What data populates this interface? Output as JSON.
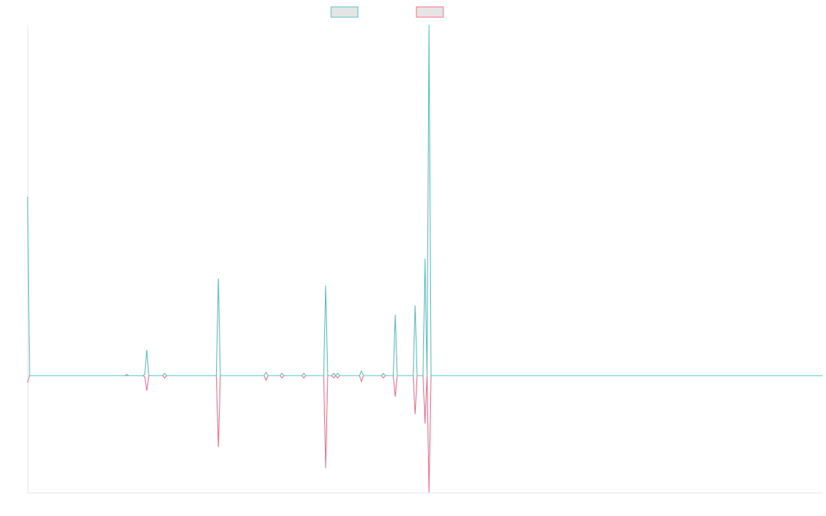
{
  "colors": {
    "series_1": "#4bc0c0",
    "series_2": "#ff6384",
    "legend_fill": "#e5e5e5",
    "axis": "#e6e6e6",
    "background": "#ffffff"
  },
  "legend": {
    "placement": "top-center",
    "items": [
      {
        "label": "",
        "color": "#4bc0c0"
      },
      {
        "label": "",
        "color": "#ff6384"
      }
    ]
  },
  "chart_data": {
    "type": "line",
    "title": "",
    "xlabel": "",
    "ylabel": "",
    "grid": false,
    "ticks_visible": false,
    "x": [
      0,
      1,
      2,
      3,
      4,
      5,
      6,
      7,
      8,
      9,
      10,
      11,
      12,
      13,
      14,
      15,
      16,
      17,
      18,
      19,
      20,
      21,
      22,
      23,
      24,
      25,
      26,
      27,
      28,
      29,
      30,
      31,
      32,
      33,
      34,
      35,
      36,
      37,
      38,
      39,
      40,
      41,
      42,
      43,
      44,
      45,
      46,
      47,
      48,
      49,
      50,
      51,
      52,
      53,
      54,
      55,
      56,
      57,
      58,
      59,
      60,
      61,
      62,
      63,
      64,
      65,
      66,
      67,
      68,
      69,
      70,
      71,
      72,
      73,
      74,
      75,
      76,
      77,
      78,
      79,
      80,
      81,
      82,
      83,
      84,
      85,
      86,
      87,
      88,
      89,
      90,
      91,
      92,
      93,
      94,
      95,
      96,
      97,
      98,
      99,
      100,
      101,
      102,
      103,
      104,
      105,
      106,
      107,
      108,
      109,
      110,
      111,
      112,
      113,
      114,
      115,
      116,
      117,
      118,
      119,
      120,
      121,
      122,
      123,
      124,
      125,
      126,
      127,
      128,
      129,
      130,
      131,
      132,
      133,
      134,
      135,
      136,
      137,
      138,
      139,
      140,
      141,
      142,
      143,
      144,
      145,
      146,
      147,
      148,
      149,
      150,
      151,
      152,
      153,
      154,
      155,
      156,
      157,
      158,
      159,
      160,
      161,
      162,
      163,
      164,
      165,
      166,
      167,
      168,
      169,
      170,
      171,
      172,
      173,
      174,
      175,
      176,
      177,
      178,
      179,
      180,
      181,
      182,
      183,
      184,
      185,
      186,
      187,
      188,
      189,
      190,
      191,
      192,
      193,
      194,
      195,
      196,
      197,
      198,
      199,
      200,
      201,
      202,
      203,
      204,
      205,
      206,
      207,
      208,
      209,
      210,
      211,
      212,
      213,
      214,
      215,
      216,
      217,
      218,
      219,
      220,
      221,
      222,
      223,
      224,
      225,
      226,
      227,
      228,
      229,
      230,
      231,
      232,
      233,
      234,
      235,
      236,
      237,
      238,
      239,
      240,
      241,
      242,
      243,
      244,
      245,
      246,
      247,
      248,
      249,
      250,
      251,
      252,
      253,
      254,
      255,
      256,
      257,
      258,
      259,
      260,
      261,
      262,
      263,
      264,
      265,
      266,
      267,
      268,
      269,
      270,
      271,
      272,
      273,
      274,
      275,
      276,
      277,
      278,
      279,
      280,
      281,
      282,
      283,
      284,
      285,
      286,
      287,
      288,
      289,
      290,
      291,
      292,
      293,
      294,
      295,
      296,
      297,
      298,
      299,
      300,
      301,
      302,
      303,
      304,
      305,
      306,
      307,
      308,
      309,
      310,
      311,
      312,
      313,
      314,
      315,
      316,
      317,
      318,
      319,
      320,
      321,
      322,
      323,
      324,
      325,
      326,
      327,
      328,
      329,
      330,
      331,
      332,
      333,
      334,
      335,
      336,
      337,
      338,
      339,
      340,
      341,
      342,
      343,
      344,
      345,
      346,
      347,
      348,
      349,
      350,
      351,
      352,
      353,
      354,
      355,
      356,
      357,
      358,
      359,
      360,
      361,
      362,
      363,
      364,
      365,
      366,
      367,
      368,
      369,
      370,
      371,
      372,
      373,
      374,
      375,
      376,
      377,
      378,
      379,
      380,
      381,
      382,
      383,
      384,
      385,
      386,
      387,
      388,
      389,
      390,
      391,
      392,
      393,
      394,
      395,
      396,
      397,
      398,
      399,
      400
    ],
    "ylim": [
      -100,
      300
    ],
    "baseline": 0,
    "series": [
      {
        "color": "#4bc0c0",
        "spikes": [
          {
            "x": 0,
            "y": 153
          },
          {
            "x": 50,
            "y": 1
          },
          {
            "x": 59,
            "y": 1
          },
          {
            "x": 60,
            "y": 22
          },
          {
            "x": 69,
            "y": 2
          },
          {
            "x": 96,
            "y": 83
          },
          {
            "x": 120,
            "y": 3
          },
          {
            "x": 128,
            "y": 2
          },
          {
            "x": 139,
            "y": 2
          },
          {
            "x": 150,
            "y": 77
          },
          {
            "x": 154,
            "y": 2
          },
          {
            "x": 156,
            "y": 2
          },
          {
            "x": 168,
            "y": 4
          },
          {
            "x": 179,
            "y": 2
          },
          {
            "x": 185,
            "y": 52
          },
          {
            "x": 195,
            "y": 60
          },
          {
            "x": 200,
            "y": 100
          },
          {
            "x": 202,
            "y": 300
          }
        ]
      },
      {
        "color": "#ff6384",
        "spikes": [
          {
            "x": 0,
            "y": -6
          },
          {
            "x": 59,
            "y": -1
          },
          {
            "x": 60,
            "y": -13
          },
          {
            "x": 69,
            "y": -2
          },
          {
            "x": 96,
            "y": -61
          },
          {
            "x": 120,
            "y": -4
          },
          {
            "x": 128,
            "y": -2
          },
          {
            "x": 139,
            "y": -2
          },
          {
            "x": 150,
            "y": -79
          },
          {
            "x": 154,
            "y": -2
          },
          {
            "x": 156,
            "y": -2
          },
          {
            "x": 168,
            "y": -5
          },
          {
            "x": 179,
            "y": -2
          },
          {
            "x": 185,
            "y": -18
          },
          {
            "x": 195,
            "y": -33
          },
          {
            "x": 200,
            "y": -41
          },
          {
            "x": 202,
            "y": -100
          }
        ]
      }
    ]
  }
}
